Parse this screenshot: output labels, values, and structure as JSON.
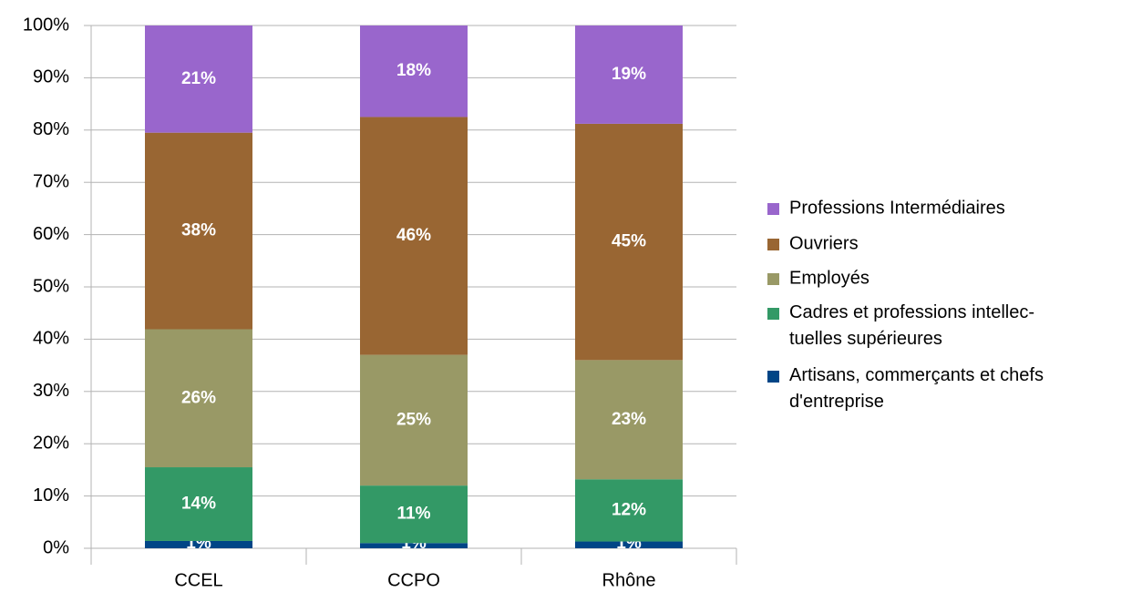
{
  "chart_data": {
    "type": "stacked_bar",
    "categories": [
      "CCEL",
      "CCPO",
      "Rhône"
    ],
    "series": [
      {
        "name": "Artisans, commerçants et chefs\nd'entreprise",
        "color": "#004586",
        "values": [
          1.4,
          1,
          1.3
        ],
        "value_labels": [
          "1%",
          "1%",
          "1%"
        ]
      },
      {
        "name": "Cadres et professions intellec-\ntuelles supérieures",
        "color": "#339966",
        "values": [
          14.1,
          11,
          11.9
        ],
        "value_labels": [
          "14%",
          "11%",
          "12%"
        ]
      },
      {
        "name": "Employés",
        "color": "#999966",
        "values": [
          26.4,
          25,
          22.8
        ],
        "value_labels": [
          "26%",
          "25%",
          "23%"
        ]
      },
      {
        "name": "Ouvriers",
        "color": "#996633",
        "values": [
          37.6,
          45.5,
          45.2
        ],
        "value_labels": [
          "38%",
          "46%",
          "45%"
        ]
      },
      {
        "name": "Professions Intermédiaires",
        "color": "#9966cc",
        "values": [
          20.5,
          17.5,
          18.8
        ],
        "value_labels": [
          "21%",
          "18%",
          "19%"
        ]
      }
    ],
    "ylim": [
      0,
      100
    ],
    "yticks": [
      {
        "value": 0,
        "label": "0%"
      },
      {
        "value": 10,
        "label": "10%"
      },
      {
        "value": 20,
        "label": "20%"
      },
      {
        "value": 30,
        "label": "30%"
      },
      {
        "value": 40,
        "label": "40%"
      },
      {
        "value": 50,
        "label": "50%"
      },
      {
        "value": 60,
        "label": "60%"
      },
      {
        "value": 70,
        "label": "70%"
      },
      {
        "value": 80,
        "label": "80%"
      },
      {
        "value": 90,
        "label": "90%"
      },
      {
        "value": 100,
        "label": "100%"
      }
    ],
    "grid": true,
    "legend": "right"
  }
}
